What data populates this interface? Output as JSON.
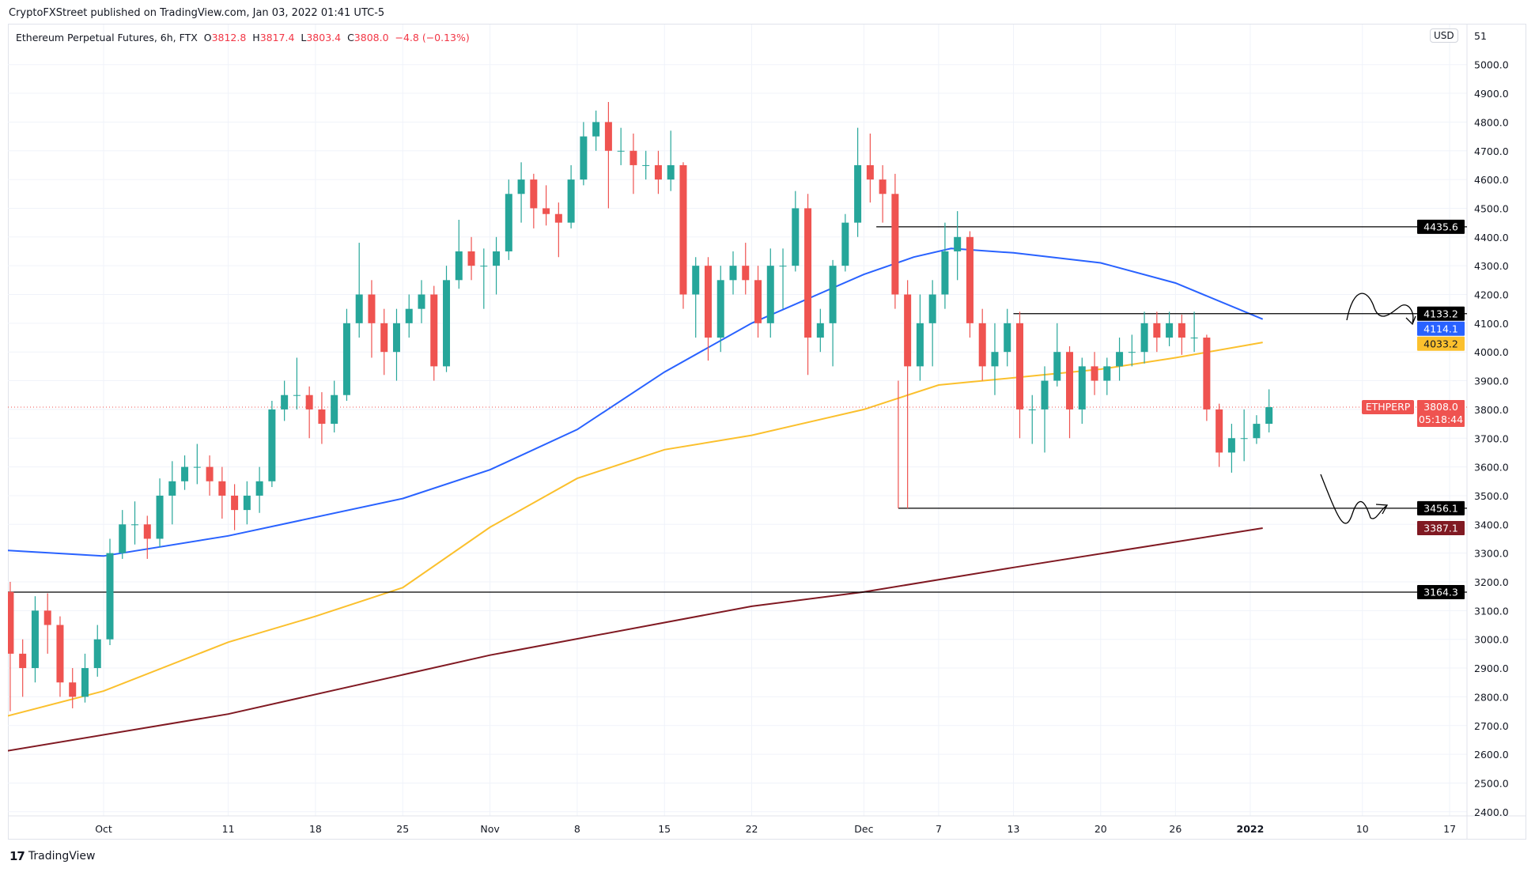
{
  "publisher_line": "CryptoFXStreet published on TradingView.com, Jan 03, 2022 01:41 UTC-5",
  "legend": {
    "symbol": "Ethereum Perpetual Futures, 6h, FTX",
    "o_label": "O",
    "o": "3812.8",
    "h_label": "H",
    "h": "3817.4",
    "l_label": "L",
    "l": "3803.4",
    "c_label": "C",
    "c": "3808.0",
    "change": "−4.8 (−0.13%)"
  },
  "currency_button": "USD",
  "brand": "TradingView",
  "chart_data": {
    "type": "candlestick",
    "start_date": "2021-09-23",
    "candles": [
      [
        3165,
        3200,
        2750,
        2950
      ],
      [
        2950,
        3000,
        2800,
        2900
      ],
      [
        2900,
        3150,
        2850,
        3100
      ],
      [
        3100,
        3160,
        2950,
        3050
      ],
      [
        3050,
        3080,
        2800,
        2850
      ],
      [
        2850,
        2900,
        2760,
        2800
      ],
      [
        2800,
        2950,
        2780,
        2900
      ],
      [
        2900,
        3050,
        2870,
        3000
      ],
      [
        3000,
        3350,
        2980,
        3300
      ],
      [
        3300,
        3450,
        3280,
        3400
      ],
      [
        3400,
        3480,
        3330,
        3400
      ],
      [
        3400,
        3430,
        3280,
        3350
      ],
      [
        3350,
        3560,
        3320,
        3500
      ],
      [
        3500,
        3620,
        3400,
        3550
      ],
      [
        3550,
        3640,
        3520,
        3600
      ],
      [
        3600,
        3680,
        3540,
        3600
      ],
      [
        3600,
        3640,
        3500,
        3550
      ],
      [
        3550,
        3600,
        3420,
        3500
      ],
      [
        3500,
        3540,
        3380,
        3450
      ],
      [
        3450,
        3550,
        3400,
        3500
      ],
      [
        3500,
        3600,
        3440,
        3550
      ],
      [
        3550,
        3830,
        3530,
        3800
      ],
      [
        3800,
        3900,
        3760,
        3850
      ],
      [
        3850,
        3980,
        3800,
        3850
      ],
      [
        3850,
        3880,
        3700,
        3800
      ],
      [
        3800,
        3860,
        3680,
        3750
      ],
      [
        3750,
        3900,
        3720,
        3850
      ],
      [
        3850,
        4150,
        3830,
        4100
      ],
      [
        4100,
        4380,
        4050,
        4200
      ],
      [
        4200,
        4250,
        3980,
        4100
      ],
      [
        4100,
        4150,
        3920,
        4000
      ],
      [
        4000,
        4150,
        3900,
        4100
      ],
      [
        4100,
        4200,
        4050,
        4150
      ],
      [
        4150,
        4250,
        4100,
        4200
      ],
      [
        4200,
        4230,
        3900,
        3950
      ],
      [
        3950,
        4300,
        3930,
        4250
      ],
      [
        4250,
        4460,
        4220,
        4350
      ],
      [
        4350,
        4400,
        4250,
        4300
      ],
      [
        4300,
        4360,
        4150,
        4300
      ],
      [
        4300,
        4400,
        4200,
        4350
      ],
      [
        4350,
        4600,
        4320,
        4550
      ],
      [
        4550,
        4660,
        4450,
        4600
      ],
      [
        4600,
        4620,
        4430,
        4500
      ],
      [
        4500,
        4580,
        4440,
        4480
      ],
      [
        4480,
        4520,
        4330,
        4450
      ],
      [
        4450,
        4650,
        4430,
        4600
      ],
      [
        4600,
        4800,
        4580,
        4750
      ],
      [
        4750,
        4840,
        4700,
        4800
      ],
      [
        4800,
        4870,
        4500,
        4700
      ],
      [
        4700,
        4780,
        4650,
        4700
      ],
      [
        4700,
        4760,
        4550,
        4650
      ],
      [
        4650,
        4700,
        4600,
        4650
      ],
      [
        4650,
        4700,
        4550,
        4600
      ],
      [
        4600,
        4770,
        4560,
        4650
      ],
      [
        4650,
        4660,
        4150,
        4200
      ],
      [
        4200,
        4330,
        4050,
        4300
      ],
      [
        4300,
        4330,
        3970,
        4050
      ],
      [
        4050,
        4300,
        4000,
        4250
      ],
      [
        4250,
        4350,
        4200,
        4300
      ],
      [
        4300,
        4380,
        4200,
        4250
      ],
      [
        4250,
        4300,
        4050,
        4100
      ],
      [
        4100,
        4360,
        4050,
        4300
      ],
      [
        4300,
        4360,
        4150,
        4300
      ],
      [
        4300,
        4560,
        4280,
        4500
      ],
      [
        4500,
        4550,
        3920,
        4050
      ],
      [
        4050,
        4150,
        4000,
        4100
      ],
      [
        4100,
        4320,
        3950,
        4300
      ],
      [
        4300,
        4480,
        4280,
        4450
      ],
      [
        4450,
        4780,
        4400,
        4650
      ],
      [
        4650,
        4760,
        4520,
        4600
      ],
      [
        4600,
        4650,
        4450,
        4550
      ],
      [
        4550,
        4620,
        4150,
        4200
      ],
      [
        4200,
        4250,
        3456,
        3950
      ],
      [
        3950,
        4200,
        3900,
        4100
      ],
      [
        4100,
        4250,
        3950,
        4200
      ],
      [
        4200,
        4450,
        4150,
        4350
      ],
      [
        4350,
        4490,
        4250,
        4400
      ],
      [
        4400,
        4420,
        4050,
        4100
      ],
      [
        4100,
        4150,
        3900,
        3950
      ],
      [
        3950,
        4100,
        3850,
        4000
      ],
      [
        4000,
        4150,
        3950,
        4100
      ],
      [
        4100,
        4140,
        3700,
        3800
      ],
      [
        3800,
        3850,
        3680,
        3800
      ],
      [
        3800,
        3950,
        3650,
        3900
      ],
      [
        3900,
        4100,
        3880,
        4000
      ],
      [
        4000,
        4020,
        3700,
        3800
      ],
      [
        3800,
        3980,
        3750,
        3950
      ],
      [
        3950,
        4000,
        3850,
        3900
      ],
      [
        3900,
        3980,
        3850,
        3950
      ],
      [
        3950,
        4050,
        3900,
        4000
      ],
      [
        4000,
        4060,
        3950,
        4000
      ],
      [
        4000,
        4140,
        3960,
        4100
      ],
      [
        4100,
        4140,
        4000,
        4050
      ],
      [
        4050,
        4140,
        4020,
        4100
      ],
      [
        4100,
        4130,
        3990,
        4050
      ],
      [
        4050,
        4140,
        4000,
        4050
      ],
      [
        4050,
        4060,
        3760,
        3800
      ],
      [
        3800,
        3820,
        3600,
        3650
      ],
      [
        3650,
        3750,
        3580,
        3700
      ],
      [
        3700,
        3800,
        3620,
        3700
      ],
      [
        3700,
        3780,
        3680,
        3750
      ],
      [
        3750,
        3870,
        3720,
        3808
      ]
    ],
    "moving_averages": [
      {
        "color": "#2962ff",
        "last": "4114.1",
        "points": [
          [
            "2021-09-23",
            3310
          ],
          [
            "2021-10-01",
            3290
          ],
          [
            "2021-10-11",
            3360
          ],
          [
            "2021-10-25",
            3490
          ],
          [
            "2021-11-01",
            3590
          ],
          [
            "2021-11-08",
            3730
          ],
          [
            "2021-11-15",
            3930
          ],
          [
            "2021-11-22",
            4100
          ],
          [
            "2021-12-01",
            4270
          ],
          [
            "2021-12-05",
            4330
          ],
          [
            "2021-12-08",
            4360
          ],
          [
            "2021-12-13",
            4345
          ],
          [
            "2021-12-20",
            4310
          ],
          [
            "2021-12-26",
            4240
          ],
          [
            "2022-01-02",
            4114.1
          ]
        ]
      },
      {
        "color": "#fbc02d",
        "last": "4033.2",
        "points": [
          [
            "2021-09-23",
            2730
          ],
          [
            "2021-10-01",
            2820
          ],
          [
            "2021-10-11",
            2990
          ],
          [
            "2021-10-18",
            3080
          ],
          [
            "2021-10-25",
            3180
          ],
          [
            "2021-11-01",
            3390
          ],
          [
            "2021-11-08",
            3560
          ],
          [
            "2021-11-15",
            3660
          ],
          [
            "2021-11-22",
            3710
          ],
          [
            "2021-12-01",
            3800
          ],
          [
            "2021-12-07",
            3885
          ],
          [
            "2021-12-13",
            3910
          ],
          [
            "2021-12-20",
            3940
          ],
          [
            "2021-12-26",
            3980
          ],
          [
            "2022-01-02",
            4033.2
          ]
        ]
      },
      {
        "color": "#801922",
        "last": "3387.1",
        "points": [
          [
            "2021-09-23",
            2610
          ],
          [
            "2021-10-11",
            2740
          ],
          [
            "2021-11-01",
            2945
          ],
          [
            "2021-11-22",
            3115
          ],
          [
            "2021-12-01",
            3165
          ],
          [
            "2021-12-13",
            3250
          ],
          [
            "2022-01-02",
            3387.1
          ]
        ]
      }
    ],
    "horizontal_levels": [
      {
        "value": 4435.6,
        "label": "4435.6",
        "from": "2021-12-02"
      },
      {
        "value": 4133.2,
        "label": "4133.2",
        "from": "2021-12-13"
      },
      {
        "value": 3456.1,
        "label": "3456.1",
        "from": "2021-12-03"
      },
      {
        "value": 3164.3,
        "label": "3164.3",
        "from": "2021-09-23"
      }
    ],
    "last_price": {
      "symbol": "ETHPERP",
      "value": "3808.0",
      "countdown": "05:18:44",
      "color": "#ef5350"
    },
    "y_ticks": [
      "5000.0",
      "4900.0",
      "4800.0",
      "4700.0",
      "4600.0",
      "4500.0",
      "4400.0",
      "4300.0",
      "4200.0",
      "4100.0",
      "4000.0",
      "3900.0",
      "3800.0",
      "3700.0",
      "3600.0",
      "3500.0",
      "3400.0",
      "3300.0",
      "3200.0",
      "3100.0",
      "3000.0",
      "2900.0",
      "2800.0",
      "2700.0",
      "2600.0",
      "2500.0",
      "2400.0"
    ],
    "y_top_partial": "51",
    "x_ticks": [
      {
        "label": "Oct",
        "date": "2021-10-01",
        "bold": false
      },
      {
        "label": "11",
        "date": "2021-10-11",
        "bold": false
      },
      {
        "label": "18",
        "date": "2021-10-18",
        "bold": false
      },
      {
        "label": "25",
        "date": "2021-10-25",
        "bold": false
      },
      {
        "label": "Nov",
        "date": "2021-11-01",
        "bold": false
      },
      {
        "label": "8",
        "date": "2021-11-08",
        "bold": false
      },
      {
        "label": "15",
        "date": "2021-11-15",
        "bold": false
      },
      {
        "label": "22",
        "date": "2021-11-22",
        "bold": false
      },
      {
        "label": "Dec",
        "date": "2021-12-01",
        "bold": false
      },
      {
        "label": "7",
        "date": "2021-12-07",
        "bold": false
      },
      {
        "label": "13",
        "date": "2021-12-13",
        "bold": false
      },
      {
        "label": "20",
        "date": "2021-12-20",
        "bold": false
      },
      {
        "label": "26",
        "date": "2021-12-26",
        "bold": false
      },
      {
        "label": "2022",
        "date": "2022-01-01",
        "bold": true
      },
      {
        "label": "10",
        "date": "2022-01-10",
        "bold": false
      },
      {
        "label": "17",
        "date": "2022-01-17",
        "bold": false
      }
    ],
    "ylim": [
      2400,
      5100
    ],
    "up_color": "#26a69a",
    "down_color": "#ef5350",
    "grid": true
  }
}
